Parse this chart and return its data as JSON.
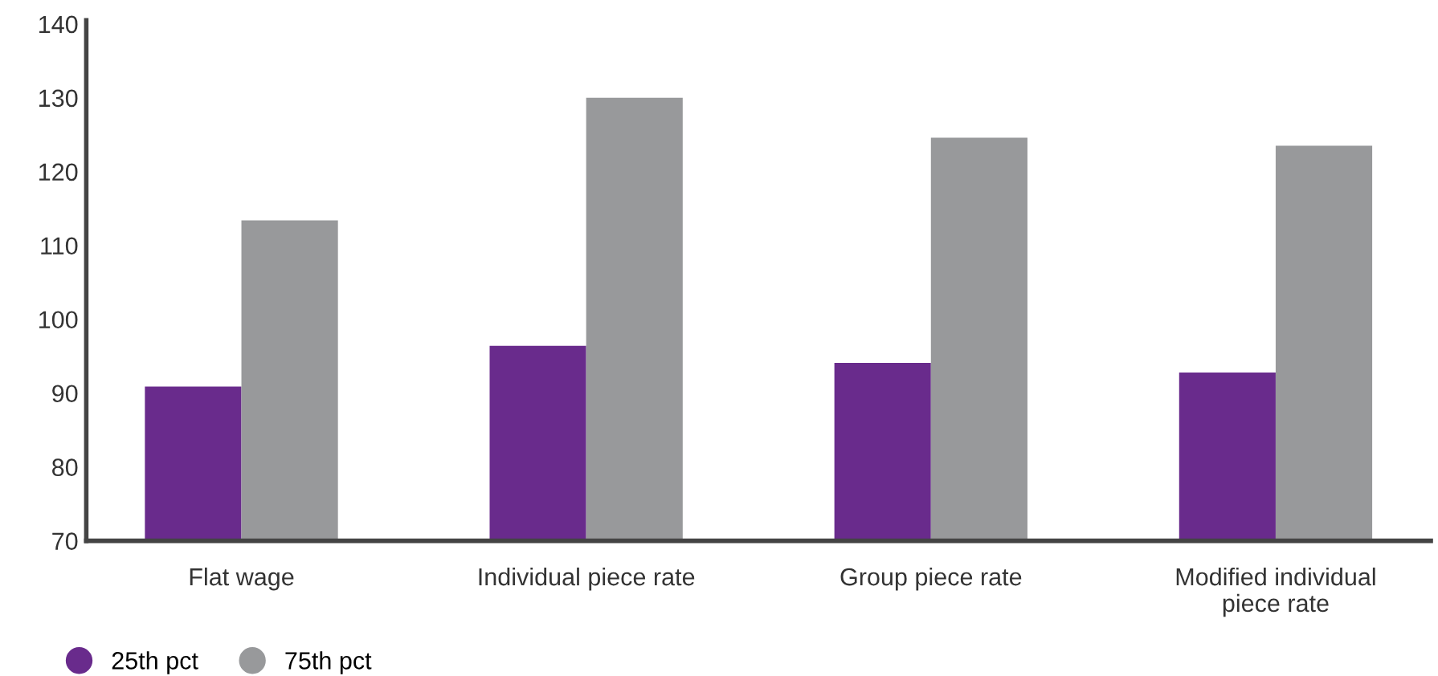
{
  "chart_data": {
    "type": "bar",
    "categories": [
      "Flat wage",
      "Individual piece rate",
      "Group piece rate",
      "Modified individual\npiece rate"
    ],
    "series": [
      {
        "name": "25th pct",
        "color": "#692b8c",
        "values": [
          90.9,
          96.4,
          94.1,
          92.8
        ]
      },
      {
        "name": "75th pct",
        "color": "#98999b",
        "values": [
          113.4,
          130,
          124.6,
          123.5
        ]
      }
    ],
    "ylim": [
      70,
      140.5
    ],
    "yticks": [
      70,
      80,
      90,
      100,
      110,
      120,
      130,
      140
    ],
    "grid": false,
    "legend": "bottom left"
  }
}
